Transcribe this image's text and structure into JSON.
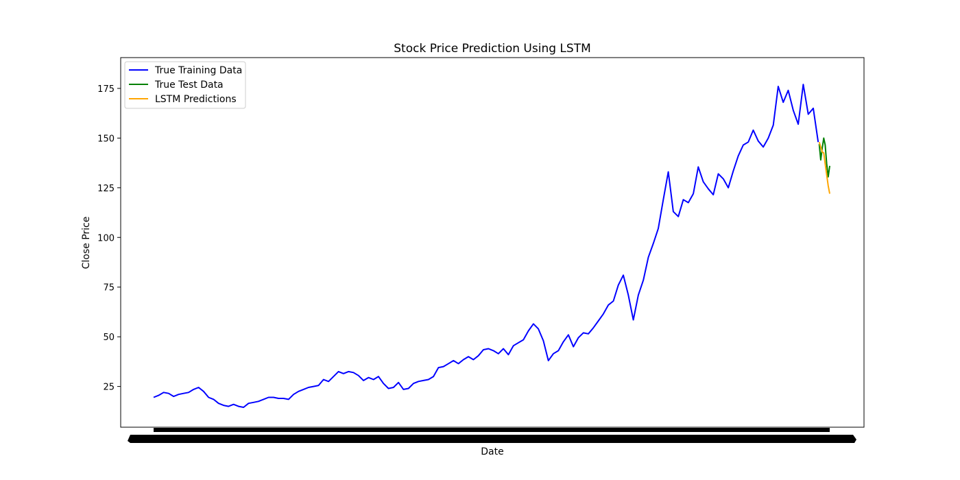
{
  "chart_data": {
    "type": "line",
    "title": "Stock Price Prediction Using LSTM",
    "xlabel": "Date",
    "ylabel": "Close Price",
    "ylim": [
      4.5,
      190.5
    ],
    "yticks": [
      25,
      50,
      75,
      100,
      125,
      150,
      175
    ],
    "ytick_labels": [
      "25",
      "50",
      "75",
      "100",
      "125",
      "150",
      "175"
    ],
    "xtick_note": "date tick labels densely overlapping (illegible)",
    "grid": false,
    "legend_position": "top-left",
    "series": [
      {
        "name": "True Training Data",
        "color": "#0000ff",
        "points": [
          [
            0,
            19.5
          ],
          [
            1,
            20.5
          ],
          [
            2,
            22.0
          ],
          [
            3,
            21.5
          ],
          [
            4,
            20.0
          ],
          [
            5,
            21.0
          ],
          [
            6,
            21.5
          ],
          [
            7,
            22.0
          ],
          [
            8,
            23.5
          ],
          [
            9,
            24.5
          ],
          [
            10,
            22.5
          ],
          [
            11,
            19.5
          ],
          [
            12,
            18.5
          ],
          [
            13,
            16.5
          ],
          [
            14,
            15.5
          ],
          [
            15,
            15.0
          ],
          [
            16,
            16.0
          ],
          [
            17,
            15.0
          ],
          [
            18,
            14.5
          ],
          [
            19,
            16.5
          ],
          [
            20,
            17.0
          ],
          [
            21,
            17.5
          ],
          [
            22,
            18.5
          ],
          [
            23,
            19.5
          ],
          [
            24,
            19.5
          ],
          [
            25,
            19.0
          ],
          [
            26,
            19.0
          ],
          [
            27,
            18.5
          ],
          [
            28,
            21.0
          ],
          [
            29,
            22.5
          ],
          [
            30,
            23.5
          ],
          [
            31,
            24.5
          ],
          [
            32,
            25.0
          ],
          [
            33,
            25.5
          ],
          [
            34,
            28.5
          ],
          [
            35,
            27.5
          ],
          [
            36,
            30.0
          ],
          [
            37,
            32.5
          ],
          [
            38,
            31.5
          ],
          [
            39,
            32.5
          ],
          [
            40,
            32.0
          ],
          [
            41,
            30.5
          ],
          [
            42,
            28.0
          ],
          [
            43,
            29.5
          ],
          [
            44,
            28.5
          ],
          [
            45,
            30.0
          ],
          [
            46,
            26.5
          ],
          [
            47,
            24.0
          ],
          [
            48,
            24.5
          ],
          [
            49,
            27.0
          ],
          [
            50,
            23.5
          ],
          [
            51,
            24.0
          ],
          [
            52,
            26.5
          ],
          [
            53,
            27.5
          ],
          [
            54,
            28.0
          ],
          [
            55,
            28.5
          ],
          [
            56,
            30.0
          ],
          [
            57,
            34.5
          ],
          [
            58,
            35.0
          ],
          [
            59,
            36.5
          ],
          [
            60,
            38.0
          ],
          [
            61,
            36.5
          ],
          [
            62,
            38.5
          ],
          [
            63,
            40.0
          ],
          [
            64,
            38.5
          ],
          [
            65,
            40.5
          ],
          [
            66,
            43.5
          ],
          [
            67,
            44.0
          ],
          [
            68,
            43.0
          ],
          [
            69,
            41.5
          ],
          [
            70,
            44.0
          ],
          [
            71,
            41.0
          ],
          [
            72,
            45.5
          ],
          [
            73,
            47.0
          ],
          [
            74,
            48.5
          ],
          [
            75,
            53.0
          ],
          [
            76,
            56.5
          ],
          [
            77,
            54.0
          ],
          [
            78,
            48.0
          ],
          [
            79,
            38.0
          ],
          [
            80,
            41.5
          ],
          [
            81,
            43.0
          ],
          [
            82,
            47.5
          ],
          [
            83,
            51.0
          ],
          [
            84,
            45.0
          ],
          [
            85,
            49.5
          ],
          [
            86,
            52.0
          ],
          [
            87,
            51.5
          ],
          [
            88,
            54.5
          ],
          [
            89,
            58.0
          ],
          [
            90,
            61.5
          ],
          [
            91,
            66.0
          ],
          [
            92,
            68.0
          ],
          [
            93,
            76.0
          ],
          [
            94,
            81.0
          ],
          [
            95,
            71.0
          ],
          [
            96,
            58.5
          ],
          [
            97,
            71.0
          ],
          [
            98,
            78.5
          ],
          [
            99,
            90.0
          ],
          [
            100,
            97.0
          ],
          [
            101,
            104.5
          ],
          [
            102,
            119.0
          ],
          [
            103,
            133.0
          ],
          [
            104,
            113.0
          ],
          [
            105,
            110.5
          ],
          [
            106,
            119.0
          ],
          [
            107,
            117.5
          ],
          [
            108,
            122.0
          ],
          [
            109,
            135.5
          ],
          [
            110,
            128.0
          ],
          [
            111,
            124.5
          ],
          [
            112,
            121.5
          ],
          [
            113,
            132.0
          ],
          [
            114,
            129.5
          ],
          [
            115,
            125.0
          ],
          [
            116,
            133.5
          ],
          [
            117,
            141.0
          ],
          [
            118,
            146.5
          ],
          [
            119,
            148.0
          ],
          [
            120,
            154.0
          ],
          [
            121,
            148.5
          ],
          [
            122,
            145.5
          ],
          [
            123,
            150.0
          ],
          [
            124,
            156.5
          ],
          [
            125,
            176.0
          ],
          [
            126,
            168.0
          ],
          [
            127,
            174.0
          ],
          [
            128,
            164.0
          ],
          [
            129,
            157.0
          ],
          [
            130,
            177.0
          ],
          [
            131,
            162.0
          ],
          [
            132,
            165.0
          ],
          [
            133,
            148.0
          ]
        ]
      },
      {
        "name": "True Test Data",
        "color": "#008000",
        "points": [
          [
            133.2,
            147.0
          ],
          [
            133.5,
            139.0
          ],
          [
            133.8,
            145.0
          ],
          [
            134.1,
            150.0
          ],
          [
            134.4,
            146.5
          ],
          [
            134.7,
            137.0
          ],
          [
            135.0,
            130.5
          ],
          [
            135.3,
            136.0
          ]
        ]
      },
      {
        "name": "LSTM Predictions",
        "color": "#ffa500",
        "points": [
          [
            133.2,
            148.0
          ],
          [
            133.5,
            145.5
          ],
          [
            133.8,
            143.0
          ],
          [
            134.1,
            142.5
          ],
          [
            134.4,
            137.0
          ],
          [
            134.7,
            131.5
          ],
          [
            135.0,
            126.0
          ],
          [
            135.3,
            122.0
          ]
        ]
      }
    ]
  }
}
